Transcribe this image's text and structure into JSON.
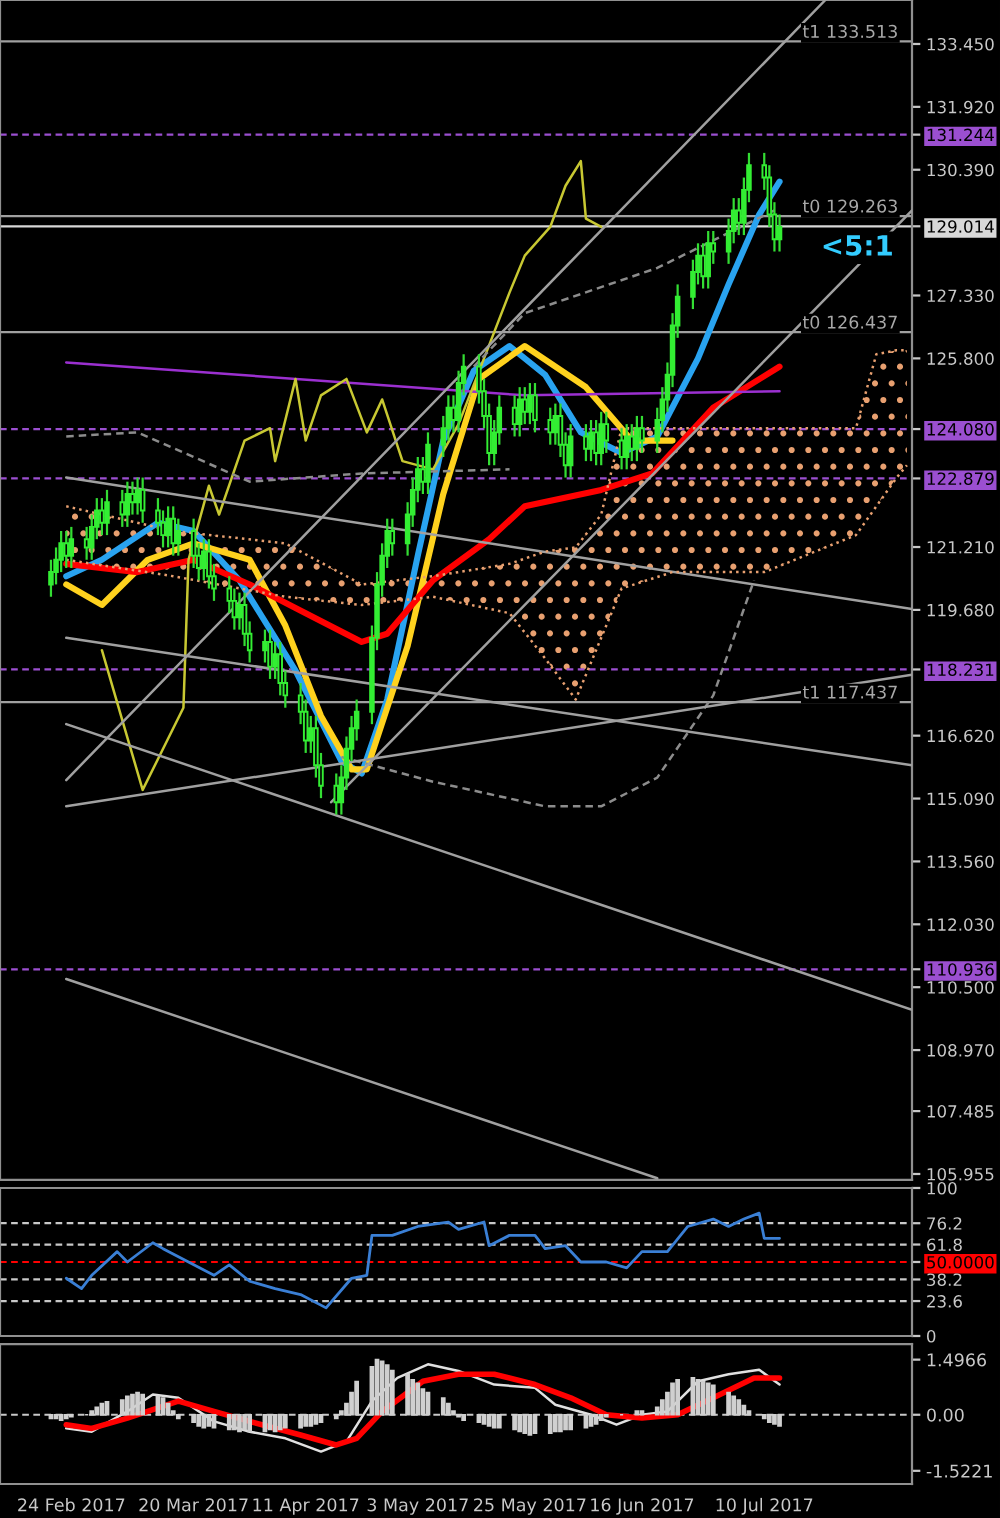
{
  "chart_data": [
    {
      "type": "candlestick",
      "x": [
        "2017-02-20",
        "2017-02-21",
        "2017-02-22",
        "2017-02-23",
        "2017-02-24",
        "2017-02-27",
        "2017-02-28",
        "2017-03-01",
        "2017-03-02",
        "2017-03-03",
        "2017-03-06",
        "2017-03-07",
        "2017-03-08",
        "2017-03-09",
        "2017-03-10",
        "2017-03-13",
        "2017-03-14",
        "2017-03-15",
        "2017-03-16",
        "2017-03-17",
        "2017-03-20",
        "2017-03-21",
        "2017-03-22",
        "2017-03-23",
        "2017-03-24",
        "2017-03-27",
        "2017-03-28",
        "2017-03-29",
        "2017-03-30",
        "2017-03-31",
        "2017-04-03",
        "2017-04-04",
        "2017-04-05",
        "2017-04-06",
        "2017-04-07",
        "2017-04-10",
        "2017-04-11",
        "2017-04-12",
        "2017-04-13",
        "2017-04-14",
        "2017-04-17",
        "2017-04-18",
        "2017-04-19",
        "2017-04-20",
        "2017-04-21",
        "2017-04-24",
        "2017-04-25",
        "2017-04-26",
        "2017-04-27",
        "2017-04-28",
        "2017-05-01",
        "2017-05-02",
        "2017-05-03",
        "2017-05-04",
        "2017-05-05",
        "2017-05-08",
        "2017-05-09",
        "2017-05-10",
        "2017-05-11",
        "2017-05-12",
        "2017-05-15",
        "2017-05-16",
        "2017-05-17",
        "2017-05-18",
        "2017-05-19",
        "2017-05-22",
        "2017-05-23",
        "2017-05-24",
        "2017-05-25",
        "2017-05-26",
        "2017-05-29",
        "2017-05-30",
        "2017-05-31",
        "2017-06-01",
        "2017-06-02",
        "2017-06-05",
        "2017-06-06",
        "2017-06-07",
        "2017-06-08",
        "2017-06-09",
        "2017-06-12",
        "2017-06-13",
        "2017-06-14",
        "2017-06-15",
        "2017-06-16",
        "2017-06-19",
        "2017-06-20",
        "2017-06-21",
        "2017-06-22",
        "2017-06-23",
        "2017-06-26",
        "2017-06-27",
        "2017-06-28",
        "2017-06-29",
        "2017-06-30",
        "2017-07-03",
        "2017-07-04",
        "2017-07-05",
        "2017-07-06",
        "2017-07-07",
        "2017-07-10",
        "2017-07-11",
        "2017-07-12",
        "2017-07-13"
      ],
      "ohlc": [
        [
          120.3,
          120.9,
          120.0,
          120.6
        ],
        [
          120.6,
          121.2,
          120.3,
          120.9
        ],
        [
          120.9,
          121.6,
          120.6,
          121.3
        ],
        [
          121.3,
          121.6,
          120.7,
          121.0
        ],
        [
          121.0,
          121.7,
          120.7,
          121.4
        ],
        [
          121.4,
          121.7,
          120.9,
          121.2
        ],
        [
          121.2,
          122.0,
          120.9,
          121.7
        ],
        [
          121.7,
          122.4,
          121.4,
          122.1
        ],
        [
          122.1,
          122.4,
          121.5,
          121.8
        ],
        [
          121.8,
          122.6,
          121.5,
          122.3
        ],
        [
          122.3,
          122.6,
          121.7,
          122.0
        ],
        [
          122.0,
          122.8,
          121.7,
          122.5
        ],
        [
          122.5,
          122.8,
          122.0,
          122.3
        ],
        [
          122.3,
          122.9,
          122.0,
          122.6
        ],
        [
          122.6,
          122.9,
          121.8,
          122.1
        ],
        [
          122.1,
          122.4,
          121.5,
          121.8
        ],
        [
          121.8,
          122.1,
          121.2,
          121.5
        ],
        [
          121.5,
          122.2,
          121.2,
          121.9
        ],
        [
          121.9,
          122.2,
          121.0,
          121.3
        ],
        [
          121.3,
          121.9,
          121.0,
          121.6
        ],
        [
          121.6,
          121.9,
          120.7,
          121.0
        ],
        [
          121.0,
          121.3,
          120.4,
          120.7
        ],
        [
          120.7,
          121.4,
          120.4,
          121.1
        ],
        [
          121.1,
          121.4,
          120.2,
          120.5
        ],
        [
          120.5,
          120.8,
          119.9,
          120.2
        ],
        [
          120.2,
          120.5,
          119.6,
          119.9
        ],
        [
          119.9,
          120.2,
          119.2,
          119.5
        ],
        [
          119.5,
          120.1,
          119.2,
          119.8
        ],
        [
          119.8,
          120.1,
          118.8,
          119.1
        ],
        [
          119.1,
          119.4,
          118.4,
          118.7
        ],
        [
          118.7,
          119.2,
          118.4,
          118.9
        ],
        [
          118.9,
          119.2,
          118.0,
          118.3
        ],
        [
          118.3,
          118.9,
          118.0,
          118.6
        ],
        [
          118.6,
          118.9,
          117.6,
          117.9
        ],
        [
          117.9,
          118.2,
          117.3,
          117.6
        ],
        [
          117.6,
          117.9,
          116.9,
          117.2
        ],
        [
          117.2,
          117.5,
          116.2,
          116.5
        ],
        [
          116.5,
          117.1,
          116.2,
          116.8
        ],
        [
          116.8,
          117.1,
          115.6,
          115.9
        ],
        [
          115.9,
          116.2,
          115.1,
          115.4
        ],
        [
          115.4,
          115.7,
          114.7,
          115.0
        ],
        [
          115.0,
          115.9,
          114.7,
          115.6
        ],
        [
          115.6,
          116.6,
          115.3,
          116.3
        ],
        [
          116.3,
          117.1,
          116.0,
          116.8
        ],
        [
          116.8,
          117.5,
          116.5,
          117.2
        ],
        [
          117.2,
          119.3,
          116.9,
          119.0
        ],
        [
          119.0,
          120.6,
          118.7,
          120.3
        ],
        [
          120.3,
          121.3,
          120.0,
          121.0
        ],
        [
          121.0,
          121.9,
          120.7,
          121.6
        ],
        [
          121.6,
          121.9,
          121.0,
          121.3
        ],
        [
          121.3,
          122.3,
          121.0,
          122.0
        ],
        [
          122.0,
          122.9,
          121.7,
          122.6
        ],
        [
          122.6,
          123.4,
          122.3,
          123.1
        ],
        [
          123.1,
          123.4,
          122.5,
          122.8
        ],
        [
          122.8,
          124.0,
          122.5,
          123.7
        ],
        [
          123.7,
          124.4,
          123.4,
          124.1
        ],
        [
          124.1,
          124.9,
          123.8,
          124.6
        ],
        [
          124.6,
          124.9,
          124.0,
          124.3
        ],
        [
          124.3,
          125.5,
          124.0,
          125.2
        ],
        [
          125.2,
          125.9,
          124.9,
          125.6
        ],
        [
          125.6,
          125.9,
          124.7,
          125.0
        ],
        [
          125.0,
          125.3,
          124.1,
          124.4
        ],
        [
          124.4,
          124.7,
          123.2,
          123.5
        ],
        [
          123.5,
          124.3,
          123.2,
          124.0
        ],
        [
          124.0,
          124.9,
          123.7,
          124.6
        ],
        [
          124.6,
          124.9,
          123.9,
          124.2
        ],
        [
          124.2,
          125.1,
          123.9,
          124.8
        ],
        [
          124.8,
          125.1,
          124.2,
          124.5
        ],
        [
          124.5,
          125.2,
          124.2,
          124.9
        ],
        [
          124.9,
          125.2,
          124.0,
          124.3
        ],
        [
          124.3,
          124.6,
          123.7,
          124.0
        ],
        [
          124.0,
          124.7,
          123.7,
          124.4
        ],
        [
          124.4,
          124.7,
          123.4,
          123.7
        ],
        [
          123.7,
          124.0,
          122.9,
          123.2
        ],
        [
          123.2,
          124.2,
          122.9,
          123.9
        ],
        [
          123.9,
          124.2,
          123.3,
          123.6
        ],
        [
          123.6,
          124.3,
          123.3,
          124.0
        ],
        [
          124.0,
          124.3,
          123.2,
          123.5
        ],
        [
          123.5,
          124.5,
          123.2,
          124.2
        ],
        [
          124.2,
          124.5,
          123.5,
          123.8
        ],
        [
          123.8,
          124.1,
          123.1,
          123.4
        ],
        [
          123.4,
          124.2,
          123.1,
          123.9
        ],
        [
          123.9,
          124.2,
          123.3,
          123.6
        ],
        [
          123.6,
          124.4,
          123.3,
          124.1
        ],
        [
          124.1,
          124.4,
          123.5,
          123.8
        ],
        [
          123.8,
          124.6,
          123.5,
          124.3
        ],
        [
          124.3,
          125.1,
          124.0,
          124.8
        ],
        [
          124.8,
          125.7,
          124.5,
          125.4
        ],
        [
          125.4,
          126.9,
          125.1,
          126.6
        ],
        [
          126.6,
          127.6,
          126.3,
          127.3
        ],
        [
          127.3,
          128.2,
          127.0,
          127.9
        ],
        [
          127.9,
          128.6,
          127.6,
          128.3
        ],
        [
          128.3,
          128.6,
          127.5,
          127.8
        ],
        [
          127.8,
          128.9,
          127.5,
          128.6
        ],
        [
          128.6,
          128.9,
          128.1,
          128.4
        ],
        [
          128.4,
          129.2,
          128.1,
          128.9
        ],
        [
          128.9,
          129.7,
          128.6,
          129.4
        ],
        [
          129.4,
          129.7,
          128.8,
          129.1
        ],
        [
          129.1,
          130.2,
          128.8,
          129.9
        ],
        [
          129.9,
          130.8,
          129.6,
          130.5
        ],
        [
          130.5,
          130.8,
          129.9,
          130.2
        ],
        [
          130.2,
          130.5,
          129.0,
          129.3
        ],
        [
          129.3,
          129.6,
          128.4,
          128.7
        ],
        [
          128.7,
          129.3,
          128.4,
          129.0
        ]
      ],
      "series": [
        {
          "type": "line",
          "color": "#29a3f0",
          "x": [
            "2017-02-23",
            "2017-03-02",
            "2017-03-13",
            "2017-03-20",
            "2017-03-29",
            "2017-04-09",
            "2017-04-18",
            "2017-04-22",
            "2017-04-27",
            "2017-05-03",
            "2017-05-08",
            "2017-05-14",
            "2017-05-21",
            "2017-05-28",
            "2017-06-04",
            "2017-06-12",
            "2017-06-19",
            "2017-06-27",
            "2017-07-03",
            "2017-07-09",
            "2017-07-13"
          ],
          "values": [
            120.5,
            120.9,
            121.8,
            121.6,
            120.4,
            118.2,
            116.0,
            115.7,
            117.5,
            121.0,
            123.8,
            125.5,
            126.1,
            125.4,
            124.0,
            123.5,
            123.9,
            125.8,
            127.6,
            129.3,
            130.1
          ]
        },
        {
          "type": "line",
          "color": "#ffd21e",
          "x": [
            "2017-02-23",
            "2017-03-02",
            "2017-03-11",
            "2017-03-20",
            "2017-03-31",
            "2017-04-07",
            "2017-04-14",
            "2017-04-20",
            "2017-04-23",
            "2017-05-01",
            "2017-05-08",
            "2017-05-15",
            "2017-05-24",
            "2017-06-05",
            "2017-06-14",
            "2017-06-22"
          ],
          "values": [
            120.3,
            119.8,
            120.9,
            121.3,
            120.9,
            119.3,
            117.1,
            115.8,
            115.8,
            118.8,
            122.5,
            125.3,
            126.1,
            125.1,
            123.8,
            123.8
          ]
        },
        {
          "type": "line",
          "color": "#ff0000",
          "x": [
            "2017-02-23",
            "2017-03-09",
            "2017-03-20",
            "2017-03-31",
            "2017-04-11",
            "2017-04-22",
            "2017-04-27",
            "2017-05-06",
            "2017-05-17",
            "2017-05-24",
            "2017-06-08",
            "2017-06-18",
            "2017-06-30",
            "2017-07-13"
          ],
          "values": [
            120.8,
            120.6,
            120.9,
            120.3,
            119.6,
            118.9,
            119.1,
            120.4,
            121.4,
            122.2,
            122.6,
            123.0,
            124.6,
            125.6
          ]
        },
        {
          "type": "line",
          "color": "#9b30d0",
          "x": [
            "2017-02-23",
            "2017-05-24",
            "2017-07-13"
          ],
          "values": [
            125.7,
            124.9,
            125.0
          ]
        },
        {
          "type": "line",
          "color": "#c8c832",
          "x": [
            "2017-03-02",
            "2017-03-06",
            "2017-03-10",
            "2017-03-18",
            "2017-03-19",
            "2017-03-23",
            "2017-03-25",
            "2017-03-30",
            "2017-04-04",
            "2017-04-05",
            "2017-04-09",
            "2017-04-11",
            "2017-04-14",
            "2017-04-19",
            "2017-04-23",
            "2017-04-26",
            "2017-04-30",
            "2017-05-06",
            "2017-05-11",
            "2017-05-21",
            "2017-05-24",
            "2017-05-29",
            "2017-06-01",
            "2017-06-04",
            "2017-06-05",
            "2017-06-08"
          ],
          "values": [
            118.7,
            117.0,
            115.3,
            117.3,
            120.9,
            122.7,
            122.0,
            123.8,
            124.1,
            123.3,
            125.3,
            123.8,
            124.9,
            125.3,
            124.0,
            124.8,
            123.3,
            123.1,
            124.2,
            127.4,
            128.3,
            129.0,
            130.0,
            130.6,
            129.2,
            129.0
          ]
        },
        {
          "type": "line",
          "color": "#8c8c8c",
          "line_style": "dashed",
          "x": [
            "2017-02-23",
            "2017-03-09",
            "2017-03-31",
            "2017-04-22",
            "2017-05-21"
          ],
          "values": [
            123.9,
            124.0,
            122.8,
            123.0,
            123.1
          ]
        },
        {
          "type": "line",
          "color": "#8c8c8c",
          "line_style": "dashed",
          "x": [
            "2017-05-14",
            "2017-05-24",
            "2017-06-19",
            "2017-07-12"
          ],
          "values": [
            125.6,
            126.9,
            128.0,
            129.4
          ]
        },
        {
          "type": "line",
          "color": "#8c8c8c",
          "line_style": "dashed",
          "x": [
            "2017-04-18",
            "2017-05-06",
            "2017-05-28",
            "2017-06-08",
            "2017-06-19",
            "2017-06-30",
            "2017-07-08"
          ],
          "values": [
            116.1,
            115.5,
            114.9,
            114.9,
            115.6,
            117.6,
            120.4
          ]
        },
        {
          "type": "line",
          "color": "#a0a0a0",
          "x": [
            "2017-02-23",
            "2017-07-22"
          ],
          "values": [
            115.54,
            134.52
          ]
        },
        {
          "type": "line",
          "color": "#a0a0a0",
          "x": [
            "2017-04-16",
            "2017-08-08"
          ],
          "values": [
            115.0,
            129.4
          ]
        },
        {
          "type": "line",
          "color": "#a0a0a0",
          "x": [
            "2017-02-23",
            "2017-08-08"
          ],
          "values": [
            122.9,
            119.7
          ]
        },
        {
          "type": "line",
          "color": "#a0a0a0",
          "x": [
            "2017-02-23",
            "2017-08-08"
          ],
          "values": [
            116.9,
            109.95
          ]
        },
        {
          "type": "line",
          "color": "#a0a0a0",
          "x": [
            "2017-02-23",
            "2017-08-08"
          ],
          "values": [
            114.9,
            118.1
          ]
        },
        {
          "type": "line",
          "color": "#a0a0a0",
          "x": [
            "2017-02-23",
            "2017-08-08"
          ],
          "values": [
            119.0,
            115.9
          ]
        },
        {
          "type": "line",
          "color": "#a0a0a0",
          "x": [
            "2017-02-23",
            "2017-06-19"
          ],
          "values": [
            110.7,
            105.85
          ]
        },
        {
          "type": "line",
          "color": "#e8a070",
          "line_style": "dotted",
          "x": [
            "2017-02-23",
            "2017-03-16",
            "2017-04-07",
            "2017-04-22",
            "2017-05-06",
            "2017-05-21",
            "2017-05-28",
            "2017-06-03",
            "2017-06-08",
            "2017-06-12",
            "2017-06-22",
            "2017-07-10",
            "2017-07-28",
            "2017-08-01",
            "2017-08-05",
            "2017-08-07"
          ],
          "values": [
            122.2,
            121.6,
            121.3,
            120.3,
            120.5,
            120.8,
            121.1,
            121.2,
            122.0,
            124.1,
            124.1,
            124.1,
            124.1,
            125.9,
            126.0,
            126.0
          ]
        },
        {
          "type": "line",
          "color": "#e8a070",
          "line_style": "dotted",
          "x": [
            "2017-02-23",
            "2017-03-16",
            "2017-04-07",
            "2017-04-22",
            "2017-05-06",
            "2017-05-21",
            "2017-05-28",
            "2017-06-03",
            "2017-06-08",
            "2017-06-12",
            "2017-06-22",
            "2017-07-10",
            "2017-07-28",
            "2017-08-01",
            "2017-08-05",
            "2017-08-07"
          ],
          "values": [
            120.9,
            120.5,
            120.0,
            119.8,
            120.0,
            119.6,
            118.5,
            117.5,
            119.0,
            120.2,
            120.6,
            120.6,
            121.5,
            122.2,
            122.9,
            123.2
          ]
        }
      ],
      "xlim": [
        "2017-02-10",
        "2017-08-08"
      ],
      "ylim": [
        105.81,
        134.52
      ],
      "yticks": [
        {
          "value": 133.45,
          "label": "133.450"
        },
        {
          "value": 131.92,
          "label": "131.920"
        },
        {
          "value": 131.244,
          "label": "131.244"
        },
        {
          "value": 130.39,
          "label": "130.390"
        },
        {
          "value": 129.014,
          "label": "129.014"
        },
        {
          "value": 127.33,
          "label": "127.330"
        },
        {
          "value": 125.8,
          "label": "125.800"
        },
        {
          "value": 124.08,
          "label": "124.080"
        },
        {
          "value": 122.879,
          "label": "122.879"
        },
        {
          "value": 121.21,
          "label": "121.210"
        },
        {
          "value": 119.68,
          "label": "119.680"
        },
        {
          "value": 118.231,
          "label": "118.231"
        },
        {
          "value": 116.62,
          "label": "116.620"
        },
        {
          "value": 115.09,
          "label": "115.090"
        },
        {
          "value": 113.56,
          "label": "113.560"
        },
        {
          "value": 112.03,
          "label": "112.030"
        },
        {
          "value": 110.936,
          "label": "110.936"
        },
        {
          "value": 110.5,
          "label": "110.500"
        },
        {
          "value": 108.97,
          "label": "108.970"
        },
        {
          "value": 107.485,
          "label": "107.485"
        },
        {
          "value": 105.955,
          "label": "105.955"
        }
      ],
      "ref_lines": [
        {
          "axis": "y",
          "value": 133.513,
          "label": "t1 133.513",
          "color": "#a0a0a0",
          "line_style": "solid"
        },
        {
          "axis": "y",
          "value": 131.244,
          "color": "#9b4fd0",
          "line_style": "dashed"
        },
        {
          "axis": "y",
          "value": 129.263,
          "label": "t0 129.263",
          "color": "#a0a0a0",
          "line_style": "solid"
        },
        {
          "axis": "y",
          "value": 129.014,
          "color": "#d8d8d8",
          "line_style": "solid"
        },
        {
          "axis": "y",
          "value": 126.437,
          "label": "t0 126.437",
          "color": "#a0a0a0",
          "line_style": "solid"
        },
        {
          "axis": "y",
          "value": 124.08,
          "color": "#9b4fd0",
          "line_style": "dashed"
        },
        {
          "axis": "y",
          "value": 122.879,
          "color": "#9b4fd0",
          "line_style": "dashed"
        },
        {
          "axis": "y",
          "value": 118.231,
          "color": "#9b4fd0",
          "line_style": "dashed"
        },
        {
          "axis": "y",
          "value": 117.437,
          "label": "t1 117.437",
          "color": "#a0a0a0",
          "line_style": "solid"
        },
        {
          "axis": "y",
          "value": 110.936,
          "color": "#9b4fd0",
          "line_style": "dashed"
        }
      ],
      "annotations": [
        "<5:1"
      ],
      "tick_labels": "y"
    },
    {
      "type": "line",
      "color": "#3a7fd5",
      "x": [
        "2017-02-23",
        "2017-02-26",
        "2017-02-28",
        "2017-03-05",
        "2017-03-07",
        "2017-03-12",
        "2017-03-14",
        "2017-03-19",
        "2017-03-24",
        "2017-03-27",
        "2017-03-31",
        "2017-04-05",
        "2017-04-10",
        "2017-04-15",
        "2017-04-20",
        "2017-04-23",
        "2017-04-24",
        "2017-04-28",
        "2017-05-03",
        "2017-05-09",
        "2017-05-11",
        "2017-05-16",
        "2017-05-17",
        "2017-05-21",
        "2017-05-26",
        "2017-05-28",
        "2017-06-01",
        "2017-06-04",
        "2017-06-09",
        "2017-06-13",
        "2017-06-16",
        "2017-06-21",
        "2017-06-25",
        "2017-06-30",
        "2017-07-03",
        "2017-07-06",
        "2017-07-09",
        "2017-07-10",
        "2017-07-13"
      ],
      "values": [
        39,
        32,
        41,
        57,
        50,
        63,
        59,
        50,
        41,
        48,
        37,
        32,
        28,
        19,
        39,
        41,
        68,
        68,
        74,
        77,
        72,
        77,
        61,
        68,
        68,
        59,
        61,
        50,
        50,
        46,
        57,
        57,
        74,
        79,
        74,
        79,
        83,
        66,
        66
      ],
      "xlim": [
        "2017-02-10",
        "2017-08-08"
      ],
      "ylim": [
        0,
        100
      ],
      "yticks": [
        100,
        76.2,
        61.8,
        {
          "value": 50,
          "label": "50.0000"
        },
        38.2,
        23.6,
        0
      ],
      "ref_lines": [
        {
          "axis": "y",
          "value": 76.2,
          "color": "#c8c8c8",
          "line_style": "dashed"
        },
        {
          "axis": "y",
          "value": 61.8,
          "color": "#c8c8c8",
          "line_style": "dashed"
        },
        {
          "axis": "y",
          "value": 50,
          "color": "#ff0000",
          "line_style": "dashed"
        },
        {
          "axis": "y",
          "value": 38.2,
          "color": "#c8c8c8",
          "line_style": "dashed"
        },
        {
          "axis": "y",
          "value": 23.6,
          "color": "#c8c8c8",
          "line_style": "dashed"
        }
      ],
      "tick_labels": "y"
    },
    {
      "type": "bar",
      "color": "#d0d0d0",
      "x": [
        "2017-02-20",
        "2017-02-21",
        "2017-02-22",
        "2017-02-23",
        "2017-02-24",
        "2017-02-27",
        "2017-02-28",
        "2017-03-01",
        "2017-03-02",
        "2017-03-03",
        "2017-03-06",
        "2017-03-07",
        "2017-03-08",
        "2017-03-09",
        "2017-03-10",
        "2017-03-13",
        "2017-03-14",
        "2017-03-15",
        "2017-03-16",
        "2017-03-17",
        "2017-03-20",
        "2017-03-21",
        "2017-03-22",
        "2017-03-23",
        "2017-03-24",
        "2017-03-27",
        "2017-03-28",
        "2017-03-29",
        "2017-03-30",
        "2017-03-31",
        "2017-04-03",
        "2017-04-04",
        "2017-04-05",
        "2017-04-06",
        "2017-04-07",
        "2017-04-10",
        "2017-04-11",
        "2017-04-12",
        "2017-04-13",
        "2017-04-14",
        "2017-04-17",
        "2017-04-18",
        "2017-04-19",
        "2017-04-20",
        "2017-04-21",
        "2017-04-24",
        "2017-04-25",
        "2017-04-26",
        "2017-04-27",
        "2017-04-28",
        "2017-05-01",
        "2017-05-02",
        "2017-05-03",
        "2017-05-04",
        "2017-05-05",
        "2017-05-08",
        "2017-05-09",
        "2017-05-10",
        "2017-05-11",
        "2017-05-12",
        "2017-05-15",
        "2017-05-16",
        "2017-05-17",
        "2017-05-18",
        "2017-05-19",
        "2017-05-22",
        "2017-05-23",
        "2017-05-24",
        "2017-05-25",
        "2017-05-26",
        "2017-05-29",
        "2017-05-30",
        "2017-05-31",
        "2017-06-01",
        "2017-06-02",
        "2017-06-05",
        "2017-06-06",
        "2017-06-07",
        "2017-06-08",
        "2017-06-09",
        "2017-06-12",
        "2017-06-13",
        "2017-06-14",
        "2017-06-15",
        "2017-06-16",
        "2017-06-19",
        "2017-06-20",
        "2017-06-21",
        "2017-06-22",
        "2017-06-23",
        "2017-06-26",
        "2017-06-27",
        "2017-06-28",
        "2017-06-29",
        "2017-06-30",
        "2017-07-03",
        "2017-07-04",
        "2017-07-05",
        "2017-07-06",
        "2017-07-07",
        "2017-07-10",
        "2017-07-11",
        "2017-07-12",
        "2017-07-13"
      ],
      "values": [
        -0.1,
        -0.1,
        -0.15,
        -0.1,
        -0.05,
        0.0,
        0.1,
        0.2,
        0.3,
        0.35,
        0.4,
        0.5,
        0.55,
        0.6,
        0.55,
        0.5,
        0.45,
        0.3,
        0.1,
        -0.1,
        -0.2,
        -0.3,
        -0.35,
        -0.3,
        -0.35,
        -0.4,
        -0.4,
        -0.45,
        -0.4,
        -0.45,
        -0.45,
        -0.4,
        -0.45,
        -0.4,
        -0.35,
        -0.35,
        -0.3,
        -0.3,
        -0.25,
        -0.2,
        -0.1,
        0.1,
        0.3,
        0.6,
        0.9,
        1.3,
        1.5,
        1.45,
        1.35,
        1.2,
        1.1,
        0.95,
        0.85,
        0.7,
        0.6,
        0.45,
        0.3,
        0.1,
        -0.05,
        -0.15,
        -0.2,
        -0.25,
        -0.3,
        -0.35,
        -0.35,
        -0.4,
        -0.45,
        -0.5,
        -0.55,
        -0.5,
        -0.5,
        -0.45,
        -0.45,
        -0.4,
        -0.4,
        -0.35,
        -0.3,
        -0.25,
        -0.15,
        -0.05,
        0.0,
        null,
        null,
        0.1,
        0.1,
        0.2,
        0.4,
        0.6,
        0.85,
        0.95,
        1.0,
        0.95,
        0.9,
        0.85,
        0.8,
        0.6,
        0.5,
        0.4,
        0.25,
        0.1,
        -0.1,
        -0.2,
        -0.25,
        -0.3
      ],
      "series": [
        {
          "type": "line",
          "color": "#e0e0e0",
          "x": [
            "2017-02-23",
            "2017-02-28",
            "2017-03-07",
            "2017-03-12",
            "2017-03-17",
            "2017-03-24",
            "2017-03-31",
            "2017-04-07",
            "2017-04-14",
            "2017-04-19",
            "2017-04-24",
            "2017-04-29",
            "2017-05-05",
            "2017-05-11",
            "2017-05-18",
            "2017-05-26",
            "2017-05-30",
            "2017-06-06",
            "2017-06-11",
            "2017-06-16",
            "2017-06-21",
            "2017-06-27",
            "2017-07-03",
            "2017-07-09",
            "2017-07-13"
          ],
          "values": [
            -0.37,
            -0.46,
            0.09,
            0.55,
            0.46,
            -0.18,
            -0.46,
            -0.64,
            -1.0,
            -0.73,
            0.37,
            1.0,
            1.37,
            1.19,
            0.82,
            0.73,
            0.27,
            0,
            -0.27,
            0,
            0.09,
            0.91,
            1.1,
            1.22,
            0.82
          ]
        },
        {
          "type": "line",
          "color": "#ff0000",
          "x": [
            "2017-02-23",
            "2017-02-28",
            "2017-03-07",
            "2017-03-17",
            "2017-03-24",
            "2017-03-31",
            "2017-04-10",
            "2017-04-17",
            "2017-04-21",
            "2017-04-26",
            "2017-05-04",
            "2017-05-11",
            "2017-05-18",
            "2017-05-26",
            "2017-06-02",
            "2017-06-09",
            "2017-06-16",
            "2017-06-23",
            "2017-06-30",
            "2017-07-08",
            "2017-07-13"
          ],
          "values": [
            -0.27,
            -0.37,
            -0.09,
            0.37,
            0.09,
            -0.18,
            -0.55,
            -0.82,
            -0.64,
            0.09,
            0.91,
            1.1,
            1.1,
            0.82,
            0.46,
            0,
            -0.09,
            0,
            0.46,
            1.0,
            1.0
          ]
        }
      ],
      "xlim": [
        "2017-02-10",
        "2017-08-08"
      ],
      "xticks": [
        {
          "value": "2017-02-24",
          "label": "24 Feb 2017"
        },
        {
          "value": "2017-03-20",
          "label": "20 Mar 2017"
        },
        {
          "value": "2017-04-11",
          "label": "11 Apr 2017"
        },
        {
          "value": "2017-05-03",
          "label": "3 May 2017"
        },
        {
          "value": "2017-05-25",
          "label": "25 May 2017"
        },
        {
          "value": "2017-06-16",
          "label": "16 Jun 2017"
        },
        {
          "value": "2017-07-10",
          "label": "10 Jul 2017"
        }
      ],
      "ylim": [
        -1.88,
        1.92
      ],
      "yticks": [
        {
          "value": 1.4966,
          "label": "1.4966"
        },
        {
          "value": 0,
          "label": "0.00"
        },
        {
          "value": -1.5221,
          "label": "-1.5221"
        }
      ],
      "ref_lines": [
        {
          "axis": "y",
          "value": 0,
          "color": "#c8c8c8",
          "line_style": "dashed"
        }
      ]
    }
  ]
}
